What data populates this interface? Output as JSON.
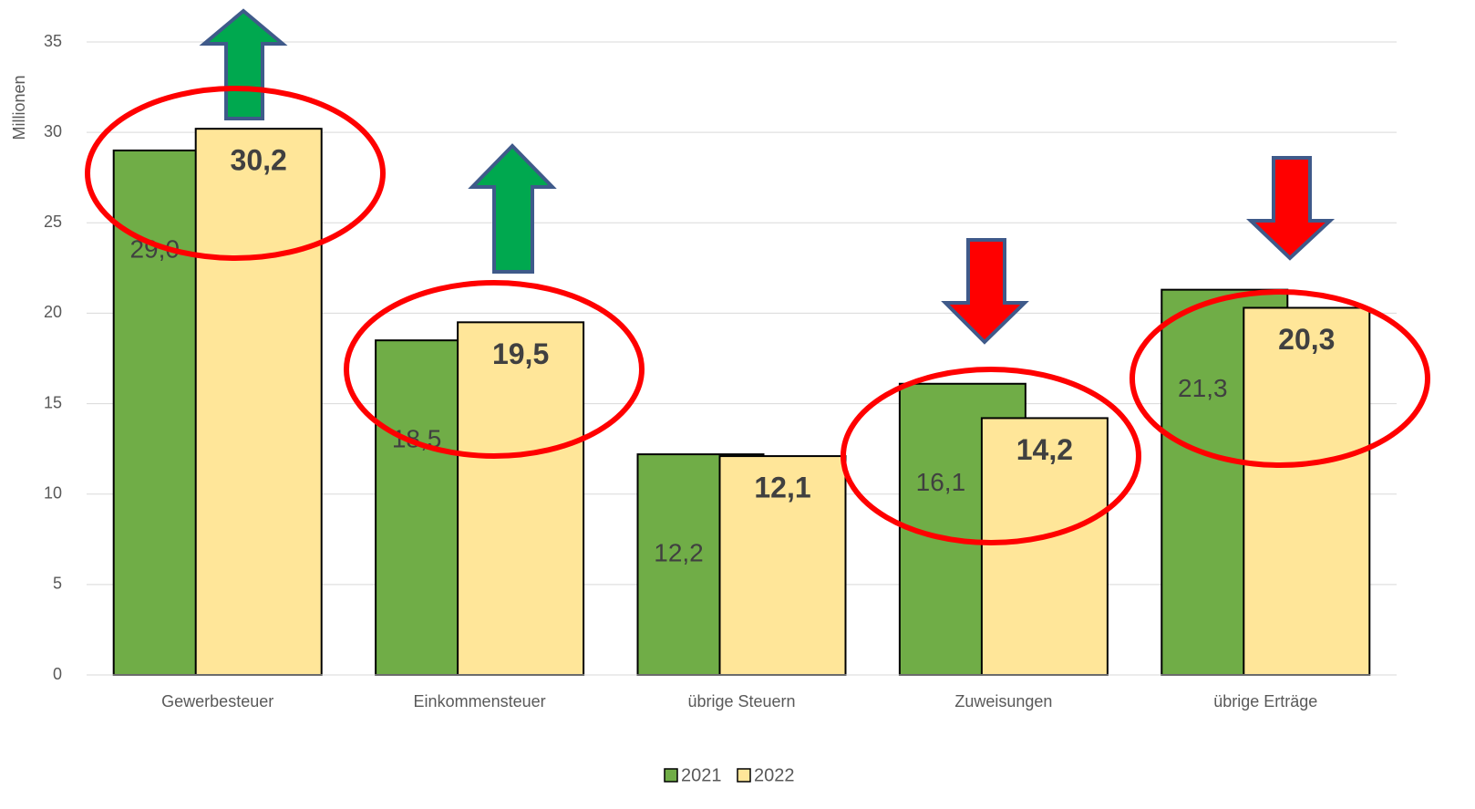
{
  "chart_data": {
    "type": "bar",
    "y_label": "Millionen",
    "categories": [
      "Gewerbesteuer",
      "Einkommensteuer",
      "übrige Steuern",
      "Zuweisungen",
      "übrige Erträge"
    ],
    "series": [
      {
        "name": "2021",
        "color": "#70ad47",
        "values": [
          29.0,
          18.5,
          12.2,
          16.1,
          21.3
        ],
        "value_labels": [
          "29,0",
          "18,5",
          "12,2",
          "16,1",
          "21,3"
        ]
      },
      {
        "name": "2022",
        "color": "#ffe699",
        "values": [
          30.2,
          19.5,
          12.1,
          14.2,
          20.3
        ],
        "value_labels": [
          "30,2",
          "19,5",
          "12,1",
          "14,2",
          "20,3"
        ]
      }
    ],
    "ylim": [
      0,
      35
    ],
    "yticks": [
      0,
      5,
      10,
      15,
      20,
      25,
      30,
      35
    ],
    "grid": true,
    "legend": "bottom"
  }
}
